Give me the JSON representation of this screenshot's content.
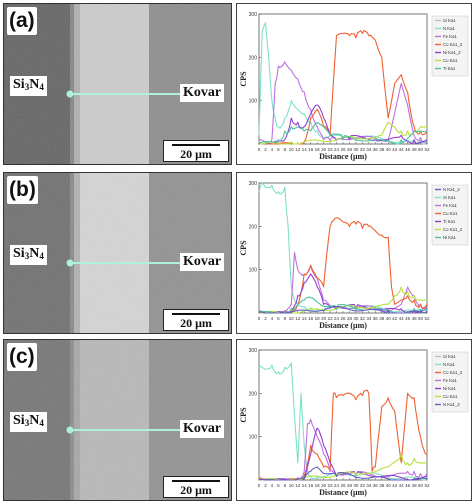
{
  "figure": {
    "left_label": "Si3N4",
    "left_label_main": "Si",
    "left_label_sub1": "3",
    "left_label_mid": "N",
    "left_label_sub2": "4",
    "right_label": "Kovar",
    "scale_bar": "20 μm"
  },
  "panels": [
    {
      "label": "(a)",
      "legend": [
        "Si Ka1",
        "N Ka1",
        "Fe Ka1",
        "Co Ka1_2",
        "Ni Ka1_2",
        "Cu Ka1",
        "Ti Ka1"
      ],
      "colors": [
        "#bdbdbd",
        "#7fe0c8",
        "#c070e0",
        "#f06030",
        "#9040d0",
        "#b6e040",
        "#50c0a0"
      ]
    },
    {
      "label": "(b)",
      "legend": [
        "N Ka1_2",
        "Si Ka1",
        "Fe Ka1",
        "Cu Ka1",
        "Ti Ka1",
        "Co Ka1_2",
        "Ni Ka1"
      ],
      "colors": [
        "#6060c0",
        "#7fe0c8",
        "#c070e0",
        "#f06030",
        "#9040d0",
        "#b6e040",
        "#50c0a0"
      ]
    },
    {
      "label": "(c)",
      "legend": [
        "Si Ka1",
        "N Ka1",
        "Co Ka1_2",
        "Fe Ka1",
        "Ni Ka1",
        "Cu Ka1",
        "N Ka1_2"
      ],
      "colors": [
        "#bdbdbd",
        "#7fe0c8",
        "#f06030",
        "#c070e0",
        "#9040d0",
        "#b6e040",
        "#6060c0"
      ]
    }
  ],
  "chart_data": [
    {
      "type": "line",
      "title": "",
      "xlabel": "Distance (μm)",
      "ylabel": "CPS",
      "xlim": [
        0,
        52
      ],
      "ylim": [
        0,
        300
      ],
      "x_ticks": [
        0,
        2,
        4,
        6,
        8,
        10,
        12,
        14,
        16,
        18,
        20,
        22,
        24,
        26,
        28,
        30,
        32,
        34,
        36,
        38,
        40,
        42,
        44,
        46,
        48,
        50,
        52
      ],
      "y_ticks": [
        100,
        200,
        300
      ],
      "series": [
        {
          "name": "N Ka1",
          "color": "#7fe0c8",
          "x": [
            0,
            1,
            2,
            3,
            4,
            5,
            6,
            8,
            10,
            12,
            14,
            16,
            18,
            20,
            30,
            40,
            46,
            48,
            50,
            52
          ],
          "y": [
            20,
            260,
            280,
            200,
            100,
            60,
            40,
            60,
            100,
            80,
            70,
            50,
            30,
            15,
            10,
            10,
            8,
            8,
            8,
            8
          ]
        },
        {
          "name": "Fe Ka1",
          "color": "#c070e0",
          "x": [
            0,
            4,
            5,
            6,
            8,
            10,
            12,
            14,
            16,
            18,
            20,
            22,
            24,
            40,
            44,
            46,
            48,
            50,
            52
          ],
          "y": [
            10,
            10,
            140,
            180,
            190,
            170,
            150,
            120,
            80,
            40,
            10,
            8,
            8,
            10,
            140,
            90,
            20,
            15,
            12
          ]
        },
        {
          "name": "Co Ka1_2",
          "color": "#f06030",
          "x": [
            0,
            14,
            16,
            18,
            20,
            22,
            24,
            26,
            28,
            30,
            32,
            34,
            36,
            38,
            40,
            42,
            44,
            46,
            48,
            50,
            52
          ],
          "y": [
            5,
            5,
            60,
            80,
            40,
            20,
            250,
            255,
            250,
            245,
            255,
            250,
            240,
            200,
            60,
            140,
            160,
            120,
            40,
            30,
            30
          ]
        },
        {
          "name": "Ni Ka1_2",
          "color": "#9040d0",
          "x": [
            0,
            8,
            10,
            12,
            14,
            16,
            18,
            20,
            22,
            24,
            28,
            36,
            40,
            44,
            48,
            52
          ],
          "y": [
            5,
            10,
            60,
            50,
            40,
            70,
            90,
            60,
            20,
            10,
            10,
            10,
            10,
            20,
            10,
            10
          ]
        },
        {
          "name": "Cu Ka1",
          "color": "#b6e040",
          "x": [
            0,
            10,
            20,
            30,
            38,
            40,
            42,
            44,
            46,
            48,
            50,
            52
          ],
          "y": [
            5,
            5,
            5,
            8,
            20,
            50,
            40,
            30,
            30,
            30,
            40,
            40
          ]
        },
        {
          "name": "Ti Ka1",
          "color": "#50c0a0",
          "x": [
            0,
            6,
            8,
            10,
            12,
            14,
            16,
            18,
            20,
            22,
            26,
            30,
            40,
            44,
            48,
            52
          ],
          "y": [
            5,
            10,
            30,
            40,
            40,
            30,
            30,
            50,
            40,
            20,
            10,
            8,
            8,
            10,
            30,
            30
          ]
        }
      ]
    },
    {
      "type": "line",
      "title": "",
      "xlabel": "Distance (μm)",
      "ylabel": "CPS",
      "xlim": [
        0,
        52
      ],
      "ylim": [
        0,
        300
      ],
      "x_ticks": [
        0,
        2,
        4,
        6,
        8,
        10,
        12,
        14,
        16,
        18,
        20,
        22,
        24,
        26,
        28,
        30,
        32,
        34,
        36,
        38,
        40,
        42,
        44,
        46,
        48,
        50,
        52
      ],
      "y_ticks": [
        100,
        200,
        300
      ],
      "series": [
        {
          "name": "Si Ka1",
          "color": "#7fe0c8",
          "x": [
            0,
            1,
            2,
            4,
            6,
            8,
            9,
            10,
            11,
            12,
            14,
            16,
            18,
            20,
            24,
            30,
            40,
            50,
            52
          ],
          "y": [
            280,
            300,
            290,
            295,
            280,
            290,
            200,
            60,
            30,
            20,
            15,
            12,
            10,
            10,
            8,
            8,
            8,
            8,
            8
          ]
        },
        {
          "name": "Fe Ka1",
          "color": "#c070e0",
          "x": [
            0,
            8,
            10,
            11,
            12,
            14,
            16,
            18,
            20,
            22,
            24,
            30,
            40,
            44,
            46,
            48,
            50,
            52
          ],
          "y": [
            5,
            5,
            20,
            140,
            100,
            90,
            110,
            80,
            30,
            10,
            8,
            8,
            8,
            20,
            60,
            40,
            20,
            20
          ]
        },
        {
          "name": "Cu Ka1",
          "color": "#f06030",
          "x": [
            0,
            10,
            12,
            14,
            16,
            18,
            20,
            22,
            24,
            26,
            28,
            30,
            32,
            34,
            36,
            38,
            40,
            41,
            42,
            44,
            46,
            48,
            50,
            52
          ],
          "y": [
            5,
            5,
            20,
            90,
            110,
            80,
            60,
            200,
            220,
            210,
            200,
            205,
            195,
            200,
            190,
            180,
            175,
            60,
            20,
            30,
            40,
            30,
            20,
            20
          ]
        },
        {
          "name": "Ti Ka1",
          "color": "#9040d0",
          "x": [
            0,
            8,
            10,
            12,
            14,
            16,
            18,
            20,
            24,
            30,
            40,
            44,
            48,
            52
          ],
          "y": [
            5,
            5,
            10,
            40,
            70,
            90,
            60,
            20,
            10,
            10,
            10,
            10,
            10,
            10
          ]
        },
        {
          "name": "Co Ka1_2",
          "color": "#b6e040",
          "x": [
            0,
            10,
            20,
            30,
            40,
            42,
            44,
            46,
            48,
            50,
            52
          ],
          "y": [
            5,
            5,
            5,
            8,
            20,
            40,
            60,
            50,
            40,
            30,
            30
          ]
        },
        {
          "name": "Ni Ka1",
          "color": "#50c0a0",
          "x": [
            0,
            8,
            10,
            12,
            14,
            16,
            18,
            20,
            24,
            30,
            40,
            48,
            52
          ],
          "y": [
            5,
            5,
            10,
            20,
            30,
            35,
            25,
            15,
            10,
            8,
            8,
            8,
            8
          ]
        },
        {
          "name": "N Ka1_2",
          "color": "#6060c0",
          "x": [
            0,
            10,
            20,
            30,
            40,
            52
          ],
          "y": [
            3,
            4,
            5,
            5,
            6,
            5
          ]
        }
      ]
    },
    {
      "type": "line",
      "title": "",
      "xlabel": "Distance (μm)",
      "ylabel": "CPS",
      "xlim": [
        0,
        52
      ],
      "ylim": [
        0,
        300
      ],
      "x_ticks": [
        0,
        2,
        4,
        6,
        8,
        10,
        12,
        14,
        16,
        18,
        20,
        22,
        24,
        26,
        28,
        30,
        32,
        34,
        36,
        38,
        40,
        42,
        44,
        46,
        48,
        50,
        52
      ],
      "y_ticks": [
        100,
        200,
        300
      ],
      "series": [
        {
          "name": "N Ka1",
          "color": "#7fe0c8",
          "x": [
            0,
            2,
            4,
            6,
            8,
            10,
            11,
            12,
            13,
            14,
            15,
            16,
            18,
            20,
            24,
            30,
            40,
            52
          ],
          "y": [
            260,
            255,
            265,
            250,
            260,
            270,
            150,
            40,
            200,
            80,
            20,
            10,
            10,
            8,
            8,
            8,
            8,
            8
          ]
        },
        {
          "name": "Co Ka1_2",
          "color": "#f06030",
          "x": [
            0,
            12,
            14,
            16,
            18,
            20,
            22,
            23,
            24,
            26,
            28,
            30,
            32,
            34,
            35,
            36,
            38,
            40,
            42,
            44,
            46,
            48,
            50,
            52
          ],
          "y": [
            5,
            5,
            10,
            80,
            60,
            30,
            20,
            200,
            190,
            195,
            200,
            185,
            195,
            200,
            20,
            30,
            170,
            190,
            160,
            40,
            200,
            190,
            100,
            60
          ]
        },
        {
          "name": "Fe Ka1",
          "color": "#c070e0",
          "x": [
            0,
            12,
            14,
            15,
            16,
            18,
            20,
            22,
            24,
            30,
            40,
            46,
            48,
            50,
            52
          ],
          "y": [
            5,
            5,
            20,
            130,
            140,
            100,
            60,
            20,
            10,
            10,
            10,
            20,
            20,
            15,
            15
          ]
        },
        {
          "name": "Ni Ka1",
          "color": "#9040d0",
          "x": [
            0,
            14,
            16,
            18,
            20,
            22,
            24,
            30,
            40,
            52
          ],
          "y": [
            5,
            5,
            60,
            120,
            80,
            40,
            10,
            10,
            10,
            10
          ]
        },
        {
          "name": "Cu Ka1",
          "color": "#b6e040",
          "x": [
            0,
            10,
            20,
            30,
            36,
            40,
            44,
            46,
            48,
            50,
            52
          ],
          "y": [
            5,
            5,
            5,
            10,
            20,
            30,
            60,
            40,
            50,
            40,
            40
          ]
        },
        {
          "name": "N Ka1_2",
          "color": "#6060c0",
          "x": [
            0,
            14,
            16,
            18,
            20,
            24,
            30,
            52
          ],
          "y": [
            3,
            3,
            20,
            30,
            15,
            8,
            5,
            5
          ]
        }
      ]
    }
  ]
}
